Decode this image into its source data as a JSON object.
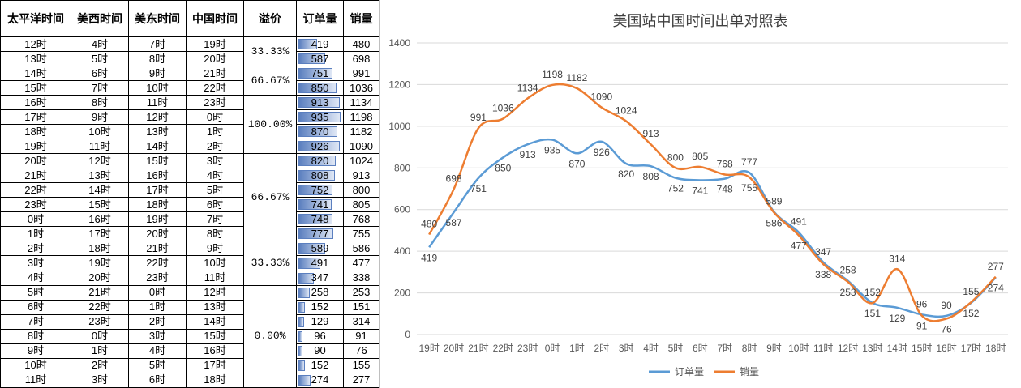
{
  "table": {
    "headers": [
      "太平洋时间",
      "美西时间",
      "美东时间",
      "中国时间",
      "溢价",
      "订单量",
      "销量"
    ],
    "rows": [
      [
        "12时",
        "4时",
        "7时",
        "19时",
        419,
        480
      ],
      [
        "13时",
        "5时",
        "8时",
        "20时",
        587,
        698
      ],
      [
        "14时",
        "6时",
        "9时",
        "21时",
        751,
        991
      ],
      [
        "15时",
        "7时",
        "10时",
        "22时",
        850,
        1036
      ],
      [
        "16时",
        "8时",
        "11时",
        "23时",
        913,
        1134
      ],
      [
        "17时",
        "9时",
        "12时",
        "0时",
        935,
        1198
      ],
      [
        "18时",
        "10时",
        "13时",
        "1时",
        870,
        1182
      ],
      [
        "19时",
        "11时",
        "14时",
        "2时",
        926,
        1090
      ],
      [
        "20时",
        "12时",
        "15时",
        "3时",
        820,
        1024
      ],
      [
        "21时",
        "13时",
        "16时",
        "4时",
        808,
        913
      ],
      [
        "22时",
        "14时",
        "17时",
        "5时",
        752,
        800
      ],
      [
        "23时",
        "15时",
        "18时",
        "6时",
        741,
        805
      ],
      [
        "0时",
        "16时",
        "19时",
        "7时",
        748,
        768
      ],
      [
        "1时",
        "17时",
        "20时",
        "8时",
        777,
        755
      ],
      [
        "2时",
        "18时",
        "21时",
        "9时",
        589,
        586
      ],
      [
        "3时",
        "19时",
        "22时",
        "10时",
        491,
        477
      ],
      [
        "4时",
        "20时",
        "23时",
        "11时",
        347,
        338
      ],
      [
        "5时",
        "21时",
        "0时",
        "12时",
        258,
        253
      ],
      [
        "6时",
        "22时",
        "1时",
        "13时",
        152,
        151
      ],
      [
        "7时",
        "23时",
        "2时",
        "14时",
        129,
        314
      ],
      [
        "8时",
        "0时",
        "3时",
        "15时",
        96,
        91
      ],
      [
        "9时",
        "1时",
        "4时",
        "16时",
        90,
        76
      ],
      [
        "10时",
        "2时",
        "5时",
        "17时",
        152,
        155
      ],
      [
        "11时",
        "3时",
        "6时",
        "18时",
        274,
        277
      ]
    ],
    "premium_groups": [
      {
        "label": "33.33%",
        "span": 2
      },
      {
        "label": "66.67%",
        "span": 2
      },
      {
        "label": "100.00%",
        "span": 4
      },
      {
        "label": "66.67%",
        "span": 6
      },
      {
        "label": "33.33%",
        "span": 3
      },
      {
        "label": "0.00%",
        "span": 7
      }
    ],
    "bar_max": 935
  },
  "chart_data": {
    "type": "line",
    "title": "美国站中国时间出单对照表",
    "categories": [
      "19时",
      "20时",
      "21时",
      "22时",
      "23时",
      "0时",
      "1时",
      "2时",
      "3时",
      "4时",
      "5时",
      "6时",
      "7时",
      "8时",
      "9时",
      "10时",
      "11时",
      "12时",
      "13时",
      "14时",
      "15时",
      "16时",
      "17时",
      "18时"
    ],
    "series": [
      {
        "name": "订单量",
        "color": "#5b9bd5",
        "values": [
          419,
          587,
          751,
          850,
          913,
          935,
          870,
          926,
          820,
          808,
          752,
          741,
          748,
          777,
          589,
          491,
          347,
          258,
          152,
          129,
          96,
          90,
          152,
          274
        ]
      },
      {
        "name": "销量",
        "color": "#ed7d31",
        "values": [
          480,
          698,
          991,
          1036,
          1134,
          1198,
          1182,
          1090,
          1024,
          913,
          800,
          805,
          768,
          755,
          586,
          477,
          338,
          253,
          151,
          314,
          91,
          76,
          155,
          277
        ]
      }
    ],
    "ylim": [
      0,
      1400
    ],
    "yticks": [
      0,
      200,
      400,
      600,
      800,
      1000,
      1200,
      1400
    ],
    "grid": true,
    "legend": "bottom",
    "smooth": true
  }
}
